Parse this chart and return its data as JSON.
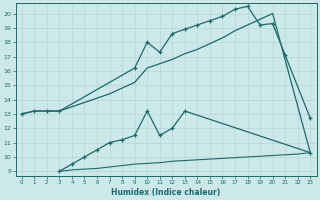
{
  "xlabel": "Humidex (Indice chaleur)",
  "bg_color": "#cce8e8",
  "grid_color": "#b8d4d4",
  "line_color": "#1a6b6b",
  "xlim": [
    -0.5,
    23.5
  ],
  "ylim": [
    8.7,
    20.7
  ],
  "xticks": [
    0,
    1,
    2,
    3,
    4,
    5,
    6,
    7,
    8,
    9,
    10,
    11,
    12,
    13,
    14,
    15,
    16,
    17,
    18,
    19,
    20,
    21,
    22,
    23
  ],
  "yticks": [
    9,
    10,
    11,
    12,
    13,
    14,
    15,
    16,
    17,
    18,
    19,
    20
  ],
  "curve1_x": [
    0,
    1,
    2,
    3,
    9,
    10,
    11,
    12,
    13,
    14,
    15,
    16,
    17,
    18,
    19,
    20,
    21,
    23
  ],
  "curve1_y": [
    13,
    13.2,
    13.2,
    13.2,
    16.2,
    18.0,
    17.3,
    18.6,
    18.9,
    19.2,
    19.5,
    19.8,
    20.3,
    20.5,
    19.2,
    19.3,
    17.1,
    12.7
  ],
  "curve2_x": [
    0,
    1,
    2,
    3,
    4,
    5,
    6,
    7,
    8,
    9,
    10,
    11,
    12,
    13,
    14,
    15,
    16,
    17,
    18,
    19,
    20,
    23
  ],
  "curve2_y": [
    13,
    13.2,
    13.2,
    13.2,
    13.5,
    13.8,
    14.1,
    14.4,
    14.8,
    15.2,
    16.2,
    16.5,
    16.8,
    17.2,
    17.5,
    17.9,
    18.3,
    18.8,
    19.2,
    19.6,
    20.0,
    10.3
  ],
  "curve3_x": [
    3,
    4,
    5,
    6,
    7,
    8,
    9,
    10,
    11,
    12,
    13,
    23
  ],
  "curve3_y": [
    9.0,
    9.5,
    10.0,
    10.5,
    11.0,
    11.2,
    11.5,
    13.2,
    11.5,
    12.0,
    13.2,
    10.3
  ],
  "curve4_x": [
    3,
    4,
    5,
    6,
    7,
    8,
    9,
    10,
    11,
    12,
    13,
    14,
    15,
    16,
    17,
    18,
    19,
    20,
    21,
    22,
    23
  ],
  "curve4_y": [
    9.0,
    9.1,
    9.15,
    9.2,
    9.3,
    9.4,
    9.5,
    9.55,
    9.6,
    9.7,
    9.75,
    9.8,
    9.85,
    9.9,
    9.95,
    10.0,
    10.05,
    10.1,
    10.15,
    10.2,
    10.3
  ]
}
